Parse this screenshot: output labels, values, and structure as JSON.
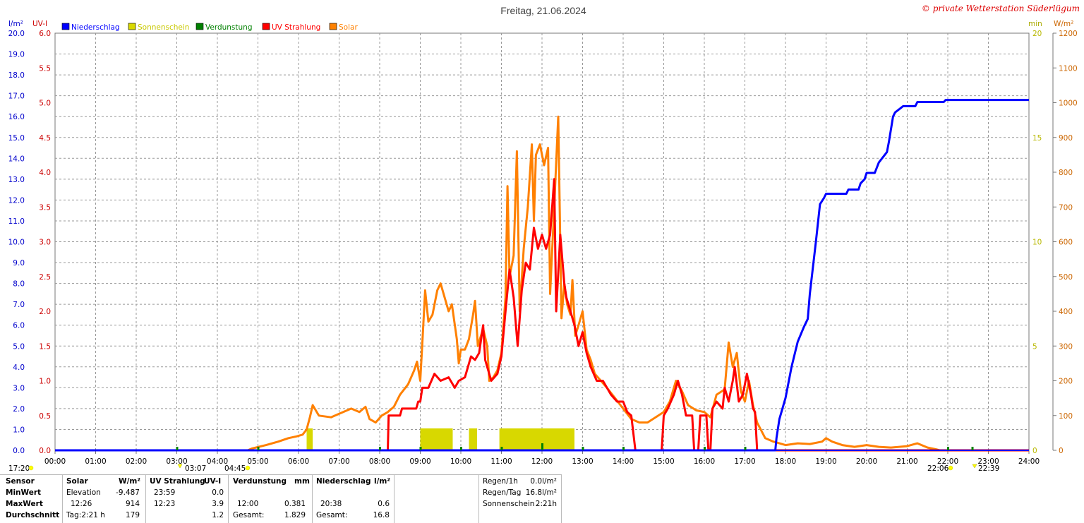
{
  "title": "Freitag, 21.06.2024",
  "copyright": "© private Wetterstation Süderlügum",
  "axis_units": {
    "left1": "l/m²",
    "left2": "UV-I",
    "right1": "min",
    "right2": "W/m²"
  },
  "legend": [
    {
      "label": "Niederschlag",
      "color": "#0000ff"
    },
    {
      "label": "Sonnenschein",
      "color": "#d8d800"
    },
    {
      "label": "Verdunstung",
      "color": "#008000"
    },
    {
      "label": "UV Strahlung",
      "color": "#ff0000"
    },
    {
      "label": "Solar",
      "color": "#ff8000"
    }
  ],
  "chart_data": {
    "type": "line",
    "title": "Freitag, 21.06.2024",
    "x_ticks": [
      "00:00",
      "01:00",
      "02:00",
      "03:00",
      "04:00",
      "05:00",
      "06:00",
      "07:00",
      "08:00",
      "09:00",
      "10:00",
      "11:00",
      "12:00",
      "13:00",
      "14:00",
      "15:00",
      "16:00",
      "17:00",
      "18:00",
      "19:00",
      "20:00",
      "21:00",
      "22:00",
      "23:00",
      "24:00"
    ],
    "precip_ticks": [
      "0.0",
      "1.0",
      "2.0",
      "3.0",
      "4.0",
      "5.0",
      "6.0",
      "7.0",
      "8.0",
      "9.0",
      "10.0",
      "11.0",
      "12.0",
      "13.0",
      "14.0",
      "15.0",
      "16.0",
      "17.0",
      "18.0",
      "19.0",
      "20.0"
    ],
    "uv_ticks": [
      "0.0",
      "0.5",
      "1.0",
      "1.5",
      "2.0",
      "2.5",
      "3.0",
      "3.5",
      "4.0",
      "4.5",
      "5.0",
      "5.5",
      "6.0"
    ],
    "sun_ticks": [
      "0",
      "5",
      "10",
      "15",
      "20"
    ],
    "solar_ticks": [
      "0",
      "100",
      "200",
      "300",
      "400",
      "500",
      "600",
      "700",
      "800",
      "900",
      "1000",
      "1100",
      "1200"
    ],
    "ylim_precip": [
      0,
      20
    ],
    "ylim_uv": [
      0,
      6
    ],
    "ylim_sun_min": [
      0,
      20
    ],
    "ylim_solar": [
      0,
      1200
    ],
    "grid": true,
    "legend_position": "top-left",
    "series": [
      {
        "name": "Niederschlag",
        "unit": "l/m²",
        "axis": "precip",
        "color": "#0000ff",
        "points": [
          [
            0,
            0
          ],
          [
            17.75,
            0
          ],
          [
            17.78,
            0.6
          ],
          [
            17.85,
            1.5
          ],
          [
            18.0,
            2.5
          ],
          [
            18.15,
            4.0
          ],
          [
            18.3,
            5.2
          ],
          [
            18.45,
            5.9
          ],
          [
            18.55,
            6.3
          ],
          [
            18.6,
            7.5
          ],
          [
            18.75,
            10.0
          ],
          [
            18.85,
            11.8
          ],
          [
            18.95,
            12.1
          ],
          [
            19.0,
            12.3
          ],
          [
            19.5,
            12.3
          ],
          [
            19.55,
            12.5
          ],
          [
            19.8,
            12.5
          ],
          [
            19.85,
            12.8
          ],
          [
            19.95,
            13.0
          ],
          [
            20.0,
            13.3
          ],
          [
            20.2,
            13.3
          ],
          [
            20.3,
            13.8
          ],
          [
            20.5,
            14.3
          ],
          [
            20.55,
            14.8
          ],
          [
            20.65,
            16.0
          ],
          [
            20.7,
            16.2
          ],
          [
            20.9,
            16.5
          ],
          [
            21.2,
            16.5
          ],
          [
            21.25,
            16.7
          ],
          [
            21.9,
            16.7
          ],
          [
            21.95,
            16.8
          ],
          [
            24.0,
            16.8
          ]
        ]
      },
      {
        "name": "UV Strahlung",
        "unit": "UV-I",
        "axis": "uv",
        "color": "#ff0000",
        "points": [
          [
            0,
            0
          ],
          [
            8.2,
            0
          ],
          [
            8.22,
            0.5
          ],
          [
            8.5,
            0.5
          ],
          [
            8.55,
            0.6
          ],
          [
            8.9,
            0.6
          ],
          [
            8.95,
            0.7
          ],
          [
            9.0,
            0.7
          ],
          [
            9.05,
            0.9
          ],
          [
            9.2,
            0.9
          ],
          [
            9.35,
            1.1
          ],
          [
            9.5,
            1.0
          ],
          [
            9.7,
            1.05
          ],
          [
            9.85,
            0.9
          ],
          [
            9.95,
            1.0
          ],
          [
            10.1,
            1.05
          ],
          [
            10.25,
            1.35
          ],
          [
            10.35,
            1.3
          ],
          [
            10.45,
            1.4
          ],
          [
            10.55,
            1.8
          ],
          [
            10.6,
            1.3
          ],
          [
            10.75,
            1.0
          ],
          [
            10.9,
            1.1
          ],
          [
            11.0,
            1.35
          ],
          [
            11.1,
            2.0
          ],
          [
            11.2,
            2.6
          ],
          [
            11.3,
            2.2
          ],
          [
            11.4,
            1.5
          ],
          [
            11.5,
            2.3
          ],
          [
            11.6,
            2.7
          ],
          [
            11.7,
            2.6
          ],
          [
            11.8,
            3.2
          ],
          [
            11.9,
            2.9
          ],
          [
            12.0,
            3.1
          ],
          [
            12.1,
            2.9
          ],
          [
            12.2,
            3.1
          ],
          [
            12.3,
            3.9
          ],
          [
            12.35,
            2.0
          ],
          [
            12.45,
            3.1
          ],
          [
            12.55,
            2.4
          ],
          [
            12.6,
            2.2
          ],
          [
            12.7,
            2.0
          ],
          [
            12.8,
            1.8
          ],
          [
            12.9,
            1.5
          ],
          [
            13.0,
            1.7
          ],
          [
            13.1,
            1.4
          ],
          [
            13.2,
            1.2
          ],
          [
            13.35,
            1.0
          ],
          [
            13.5,
            1.0
          ],
          [
            13.7,
            0.8
          ],
          [
            13.85,
            0.7
          ],
          [
            14.0,
            0.7
          ],
          [
            14.1,
            0.55
          ],
          [
            14.2,
            0.5
          ],
          [
            14.25,
            0.25
          ],
          [
            14.3,
            0
          ],
          [
            14.95,
            0
          ],
          [
            15.0,
            0.5
          ],
          [
            15.1,
            0.6
          ],
          [
            15.25,
            0.8
          ],
          [
            15.35,
            1.0
          ],
          [
            15.45,
            0.8
          ],
          [
            15.55,
            0.5
          ],
          [
            15.7,
            0.5
          ],
          [
            15.75,
            0
          ],
          [
            15.85,
            0
          ],
          [
            15.9,
            0.5
          ],
          [
            16.05,
            0.5
          ],
          [
            16.1,
            0
          ],
          [
            16.15,
            0
          ],
          [
            16.2,
            0.6
          ],
          [
            16.3,
            0.7
          ],
          [
            16.45,
            0.6
          ],
          [
            16.5,
            0.9
          ],
          [
            16.6,
            0.7
          ],
          [
            16.7,
            1.0
          ],
          [
            16.75,
            1.2
          ],
          [
            16.85,
            0.7
          ],
          [
            16.95,
            0.8
          ],
          [
            17.05,
            1.1
          ],
          [
            17.15,
            0.8
          ],
          [
            17.2,
            0.6
          ],
          [
            17.25,
            0.55
          ],
          [
            17.3,
            0
          ],
          [
            24.0,
            0
          ]
        ]
      },
      {
        "name": "Solar",
        "unit": "W/m²",
        "axis": "solar",
        "color": "#ff8000",
        "points": [
          [
            0,
            0
          ],
          [
            4.75,
            0
          ],
          [
            4.85,
            5
          ],
          [
            5.2,
            15
          ],
          [
            5.5,
            25
          ],
          [
            5.75,
            35
          ],
          [
            5.95,
            40
          ],
          [
            6.1,
            45
          ],
          [
            6.2,
            60
          ],
          [
            6.28,
            95
          ],
          [
            6.35,
            130
          ],
          [
            6.5,
            100
          ],
          [
            6.8,
            95
          ],
          [
            7.0,
            105
          ],
          [
            7.3,
            120
          ],
          [
            7.5,
            110
          ],
          [
            7.65,
            125
          ],
          [
            7.75,
            90
          ],
          [
            7.9,
            80
          ],
          [
            8.05,
            100
          ],
          [
            8.2,
            110
          ],
          [
            8.35,
            125
          ],
          [
            8.5,
            160
          ],
          [
            8.7,
            190
          ],
          [
            8.85,
            230
          ],
          [
            8.92,
            255
          ],
          [
            9.0,
            200
          ],
          [
            9.06,
            330
          ],
          [
            9.12,
            460
          ],
          [
            9.2,
            370
          ],
          [
            9.3,
            390
          ],
          [
            9.42,
            460
          ],
          [
            9.5,
            480
          ],
          [
            9.6,
            440
          ],
          [
            9.7,
            400
          ],
          [
            9.78,
            420
          ],
          [
            9.9,
            320
          ],
          [
            9.95,
            250
          ],
          [
            10.0,
            290
          ],
          [
            10.1,
            290
          ],
          [
            10.2,
            320
          ],
          [
            10.3,
            390
          ],
          [
            10.35,
            430
          ],
          [
            10.42,
            300
          ],
          [
            10.55,
            350
          ],
          [
            10.65,
            300
          ],
          [
            10.7,
            200
          ],
          [
            10.8,
            210
          ],
          [
            10.9,
            230
          ],
          [
            11.0,
            280
          ],
          [
            11.1,
            440
          ],
          [
            11.15,
            760
          ],
          [
            11.2,
            500
          ],
          [
            11.3,
            560
          ],
          [
            11.38,
            860
          ],
          [
            11.45,
            400
          ],
          [
            11.55,
            580
          ],
          [
            11.65,
            700
          ],
          [
            11.75,
            880
          ],
          [
            11.8,
            660
          ],
          [
            11.85,
            850
          ],
          [
            11.95,
            880
          ],
          [
            12.05,
            820
          ],
          [
            12.15,
            870
          ],
          [
            12.2,
            450
          ],
          [
            12.3,
            700
          ],
          [
            12.4,
            960
          ],
          [
            12.48,
            380
          ],
          [
            12.55,
            480
          ],
          [
            12.62,
            420
          ],
          [
            12.7,
            390
          ],
          [
            12.75,
            490
          ],
          [
            12.82,
            330
          ],
          [
            12.9,
            360
          ],
          [
            13.0,
            400
          ],
          [
            13.1,
            290
          ],
          [
            13.2,
            260
          ],
          [
            13.3,
            220
          ],
          [
            13.45,
            200
          ],
          [
            13.6,
            180
          ],
          [
            13.8,
            150
          ],
          [
            14.0,
            120
          ],
          [
            14.2,
            90
          ],
          [
            14.4,
            80
          ],
          [
            14.6,
            80
          ],
          [
            14.8,
            95
          ],
          [
            15.0,
            110
          ],
          [
            15.15,
            140
          ],
          [
            15.3,
            200
          ],
          [
            15.45,
            170
          ],
          [
            15.6,
            130
          ],
          [
            15.8,
            115
          ],
          [
            16.0,
            110
          ],
          [
            16.15,
            95
          ],
          [
            16.3,
            160
          ],
          [
            16.5,
            175
          ],
          [
            16.6,
            310
          ],
          [
            16.7,
            240
          ],
          [
            16.8,
            280
          ],
          [
            16.9,
            170
          ],
          [
            17.0,
            140
          ],
          [
            17.1,
            200
          ],
          [
            17.2,
            130
          ],
          [
            17.3,
            80
          ],
          [
            17.5,
            35
          ],
          [
            17.7,
            25
          ],
          [
            17.85,
            20
          ],
          [
            18.0,
            15
          ],
          [
            18.3,
            20
          ],
          [
            18.6,
            18
          ],
          [
            18.9,
            25
          ],
          [
            19.0,
            35
          ],
          [
            19.15,
            25
          ],
          [
            19.4,
            15
          ],
          [
            19.7,
            10
          ],
          [
            20.0,
            15
          ],
          [
            20.3,
            10
          ],
          [
            20.6,
            8
          ],
          [
            21.0,
            12
          ],
          [
            21.25,
            20
          ],
          [
            21.5,
            8
          ],
          [
            21.7,
            3
          ],
          [
            21.8,
            0
          ],
          [
            24.0,
            0
          ]
        ]
      }
    ],
    "sunshine_bars": [
      [
        6.2,
        6.35
      ],
      [
        9.0,
        9.8
      ],
      [
        10.2,
        10.4
      ],
      [
        10.95,
        12.8
      ]
    ],
    "evaporation_marks": [
      3.0,
      5.0,
      8.0,
      9.0,
      10.0,
      11.0,
      12.0,
      13.0,
      14.0,
      16.0,
      17.0,
      22.0,
      22.6
    ],
    "below_axis_annotations": [
      "17:20",
      "03:07",
      "04:45",
      "22:06",
      "22:39"
    ]
  },
  "stats_table": {
    "col_headers": {
      "sensor": "Sensor",
      "solar": "Solar",
      "solar_unit": "W/m²",
      "uv": "UV Strahlung",
      "uv_unit": "UV-I",
      "evap": "Verdunstung",
      "evap_unit": "mm",
      "precip": "Niederschlag",
      "precip_unit": "l/m²"
    },
    "rows": [
      {
        "label": "MinWert",
        "solar_time": "Elevation",
        "solar_val": "-9.487",
        "uv_time": "23:59",
        "uv_val": "0.0",
        "evap_time": "",
        "evap_val": "",
        "precip_time": "",
        "precip_val": ""
      },
      {
        "label": "MaxWert",
        "solar_time": "12:26",
        "solar_val": "914",
        "uv_time": "12:23",
        "uv_val": "3.9",
        "evap_time": "12:00",
        "evap_val": "0.381",
        "precip_time": "20:38",
        "precip_val": "0.6"
      },
      {
        "label": "Durchschnitt",
        "solar_time": "Tag:2:21 h",
        "solar_val": "179",
        "uv_time": "",
        "uv_val": "1.2",
        "evap_time": "Gesamt:",
        "evap_val": "1.829",
        "precip_time": "Gesamt:",
        "precip_val": "16.8"
      }
    ],
    "summary": [
      {
        "label": "Regen/1h",
        "value": "0.0l/m²"
      },
      {
        "label": "Regen/Tag",
        "value": "16.8l/m²"
      },
      {
        "label": "Sonnenschein",
        "value": "2:21h"
      }
    ]
  }
}
